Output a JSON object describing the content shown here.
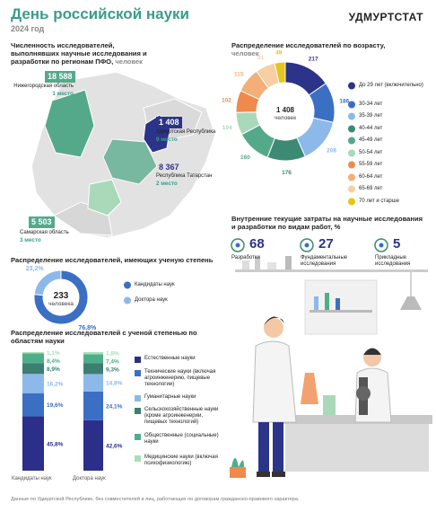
{
  "header": {
    "title": "День российской науки",
    "year": "2024 год",
    "brand": "УДМУРТСТАТ"
  },
  "map": {
    "title": "Численность исследователей, выполнявших научные исследования и разработки по регионам ПФО,",
    "unit": "человек",
    "regions": [
      {
        "value": "18 588",
        "name": "Нижегородская область",
        "rank": "1 место"
      },
      {
        "value": "1 408",
        "name": "Удмуртская Республика",
        "rank": "9 место"
      },
      {
        "value": "8 367",
        "name": "Республика Татарстан",
        "rank": "2 место"
      },
      {
        "value": "5 503",
        "name": "Самарская область",
        "rank": "3 место"
      }
    ]
  },
  "costs": {
    "title": "Внутренние текущие затраты на научные исследования и разработки по видам работ, %",
    "items": [
      {
        "value": "68",
        "label": "Разработки"
      },
      {
        "value": "27",
        "label": "Фундаментальные исследования"
      },
      {
        "value": "5",
        "label": "Прикладные исследования"
      }
    ]
  },
  "chart_data": [
    {
      "type": "donut",
      "title": "Распределение исследователей по возрасту,",
      "unit": "человек",
      "center_value": "1 408",
      "center_label": "человек",
      "categories": [
        "До 29 лет (включительно)",
        "30-34 лет",
        "35-39 лет",
        "40-44 лет",
        "45-49 лет",
        "50-54 лет",
        "55-59 лет",
        "60-64 лет",
        "65-69 лет",
        "70 лет и старше"
      ],
      "values": [
        217,
        186,
        208,
        176,
        160,
        104,
        102,
        115,
        91,
        49
      ],
      "colors": [
        "#2b3488",
        "#3a6fc4",
        "#8cb9ea",
        "#3c8a73",
        "#55a98b",
        "#a9d9b9",
        "#ef8a4c",
        "#f4ae78",
        "#f7cfa3",
        "#e5c51c"
      ]
    },
    {
      "type": "donut",
      "title": "Распределение исследователей, имеющих ученую степень",
      "center_value": "233",
      "center_label": "человека",
      "categories": [
        "Кандидаты наук",
        "Доктора наук"
      ],
      "values": [
        76.8,
        23.2
      ],
      "value_labels": [
        "76,8%",
        "23,2%"
      ],
      "colors": [
        "#3a6fc4",
        "#8cb9ea"
      ]
    },
    {
      "type": "stacked_bar",
      "title": "Распределение исследователей с ученой степенью по областям науки",
      "categories": [
        "Кандидаты наук",
        "Доктора наук"
      ],
      "ylim": [
        0,
        100
      ],
      "series": [
        {
          "name": "Естественные науки",
          "color": "#2b2f8a",
          "values": [
            45.8,
            42.6
          ],
          "value_labels": [
            "45,8%",
            "42,6%"
          ]
        },
        {
          "name": "Технические науки (включая агроинженерию, пищевые технологии)",
          "color": "#3a6fc4",
          "values": [
            19.6,
            24.1
          ],
          "value_labels": [
            "19,6%",
            "24,1%"
          ]
        },
        {
          "name": "Гуманитарные науки",
          "color": "#8cb9ea",
          "values": [
            16.2,
            14.8
          ],
          "value_labels": [
            "16,2%",
            "14,8%"
          ]
        },
        {
          "name": "Сельскохозяйственные науки (кроме агроинженерии, пищевых технологий)",
          "color": "#3c7f72",
          "values": [
            8.9,
            9.3
          ],
          "value_labels": [
            "8,9%",
            "9,3%"
          ]
        },
        {
          "name": "Общественные (социальные) науки",
          "color": "#4fae8a",
          "values": [
            8.4,
            7.4
          ],
          "value_labels": [
            "8,4%",
            "7,4%"
          ]
        },
        {
          "name": "Медицинские науки (включая психофизиологию)",
          "color": "#a8e0b8",
          "values": [
            1.1,
            1.8
          ],
          "value_labels": [
            "1,1%",
            "1,8%"
          ]
        }
      ]
    }
  ],
  "footnote": "Данные по Удмуртской Республике, без совместителей и лиц, работающих по договорам гражданско-правового характера."
}
